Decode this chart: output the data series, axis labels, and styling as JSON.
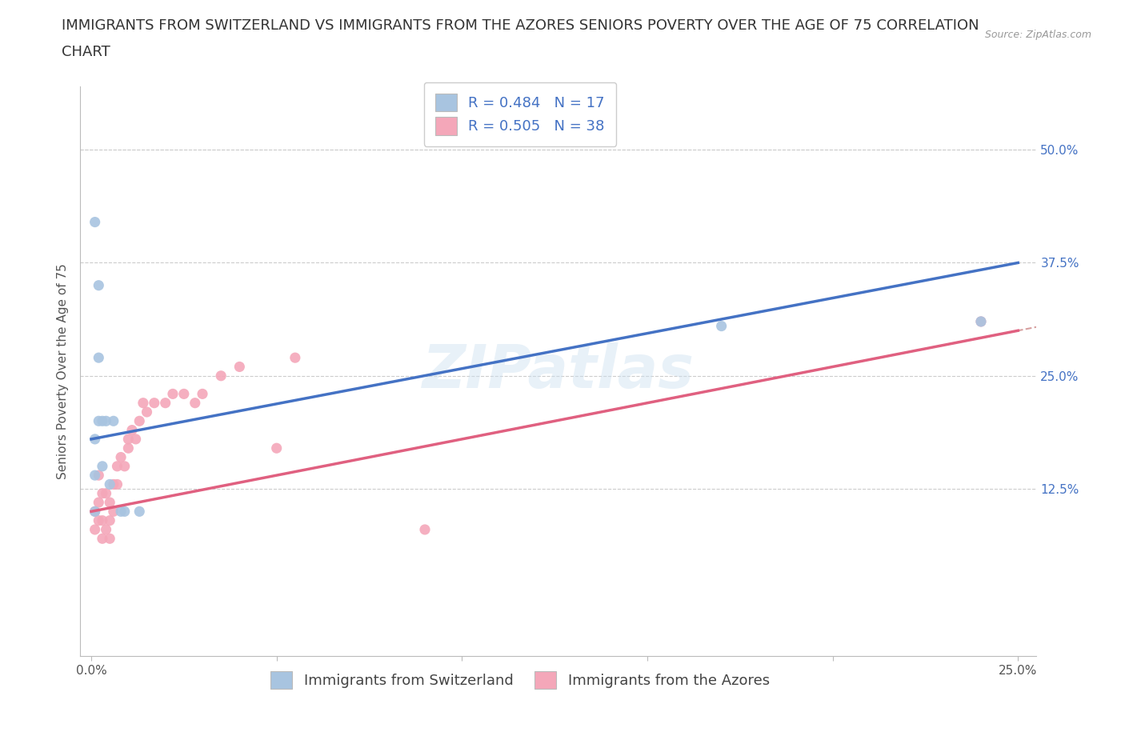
{
  "title_line1": "IMMIGRANTS FROM SWITZERLAND VS IMMIGRANTS FROM THE AZORES SENIORS POVERTY OVER THE AGE OF 75 CORRELATION",
  "title_line2": "CHART",
  "source": "Source: ZipAtlas.com",
  "ylabel": "Seniors Poverty Over the Age of 75",
  "xlim": [
    -0.003,
    0.255
  ],
  "ylim": [
    -0.06,
    0.57
  ],
  "ytick_labels_right": [
    "50.0%",
    "37.5%",
    "25.0%",
    "12.5%"
  ],
  "ytick_vals_right": [
    0.5,
    0.375,
    0.25,
    0.125
  ],
  "watermark": "ZIPatlas",
  "switzerland_color": "#a8c4e0",
  "azores_color": "#f4a7b9",
  "regression_swiss_color": "#4472c4",
  "regression_azores_color": "#e06080",
  "regression_dashed_color": "#d09090",
  "R_swiss": 0.484,
  "N_swiss": 17,
  "R_azores": 0.505,
  "N_azores": 38,
  "swiss_x": [
    0.001,
    0.001,
    0.001,
    0.001,
    0.002,
    0.002,
    0.002,
    0.003,
    0.003,
    0.004,
    0.005,
    0.006,
    0.008,
    0.009,
    0.013,
    0.17,
    0.24
  ],
  "swiss_y": [
    0.42,
    0.18,
    0.14,
    0.1,
    0.35,
    0.27,
    0.2,
    0.2,
    0.15,
    0.2,
    0.13,
    0.2,
    0.1,
    0.1,
    0.1,
    0.305,
    0.31
  ],
  "azores_x": [
    0.001,
    0.001,
    0.002,
    0.002,
    0.002,
    0.003,
    0.003,
    0.003,
    0.004,
    0.004,
    0.005,
    0.005,
    0.005,
    0.006,
    0.006,
    0.007,
    0.007,
    0.008,
    0.009,
    0.01,
    0.01,
    0.011,
    0.012,
    0.013,
    0.014,
    0.015,
    0.017,
    0.02,
    0.022,
    0.025,
    0.028,
    0.03,
    0.035,
    0.04,
    0.05,
    0.055,
    0.09,
    0.24
  ],
  "azores_y": [
    0.08,
    0.1,
    0.09,
    0.11,
    0.14,
    0.07,
    0.09,
    0.12,
    0.08,
    0.12,
    0.07,
    0.09,
    0.11,
    0.1,
    0.13,
    0.13,
    0.15,
    0.16,
    0.15,
    0.17,
    0.18,
    0.19,
    0.18,
    0.2,
    0.22,
    0.21,
    0.22,
    0.22,
    0.23,
    0.23,
    0.22,
    0.23,
    0.25,
    0.26,
    0.17,
    0.27,
    0.08,
    0.31
  ],
  "legend_label_swiss": "Immigrants from Switzerland",
  "legend_label_azores": "Immigrants from the Azores",
  "background_color": "#ffffff",
  "title_fontsize": 13,
  "axis_label_fontsize": 11,
  "tick_fontsize": 11,
  "legend_fontsize": 13,
  "swiss_regress_x0": 0.0,
  "swiss_regress_y0": 0.18,
  "swiss_regress_x1": 0.25,
  "swiss_regress_y1": 0.375,
  "azores_regress_x0": 0.0,
  "azores_regress_y0": 0.1,
  "azores_regress_x1": 0.25,
  "azores_regress_y1": 0.3
}
